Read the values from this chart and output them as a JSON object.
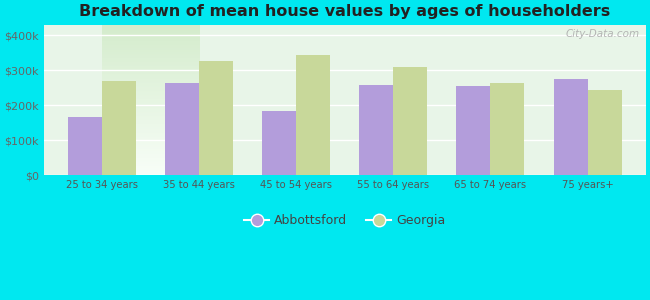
{
  "title": "Breakdown of mean house values by ages of householders",
  "categories": [
    "25 to 34 years",
    "35 to 44 years",
    "45 to 54 years",
    "55 to 64 years",
    "65 to 74 years",
    "75 years+"
  ],
  "abbottsford_values": [
    165000,
    262000,
    183000,
    258000,
    253000,
    275000
  ],
  "georgia_values": [
    268000,
    325000,
    342000,
    308000,
    263000,
    242000
  ],
  "abbottsford_color": "#b39ddb",
  "georgia_color": "#c8d89a",
  "background_outer": "#00e8f0",
  "background_inner_top": "#f5fff5",
  "background_inner_bottom": "#d8f0d8",
  "title_fontsize": 11.5,
  "ylabel_ticks": [
    0,
    100000,
    200000,
    300000,
    400000
  ],
  "ylabel_labels": [
    "$0",
    "$100k",
    "$200k",
    "$300k",
    "$400k"
  ],
  "ylim": [
    0,
    430000
  ],
  "legend_labels": [
    "Abbottsford",
    "Georgia"
  ],
  "bar_width": 0.35,
  "watermark": "City-Data.com"
}
